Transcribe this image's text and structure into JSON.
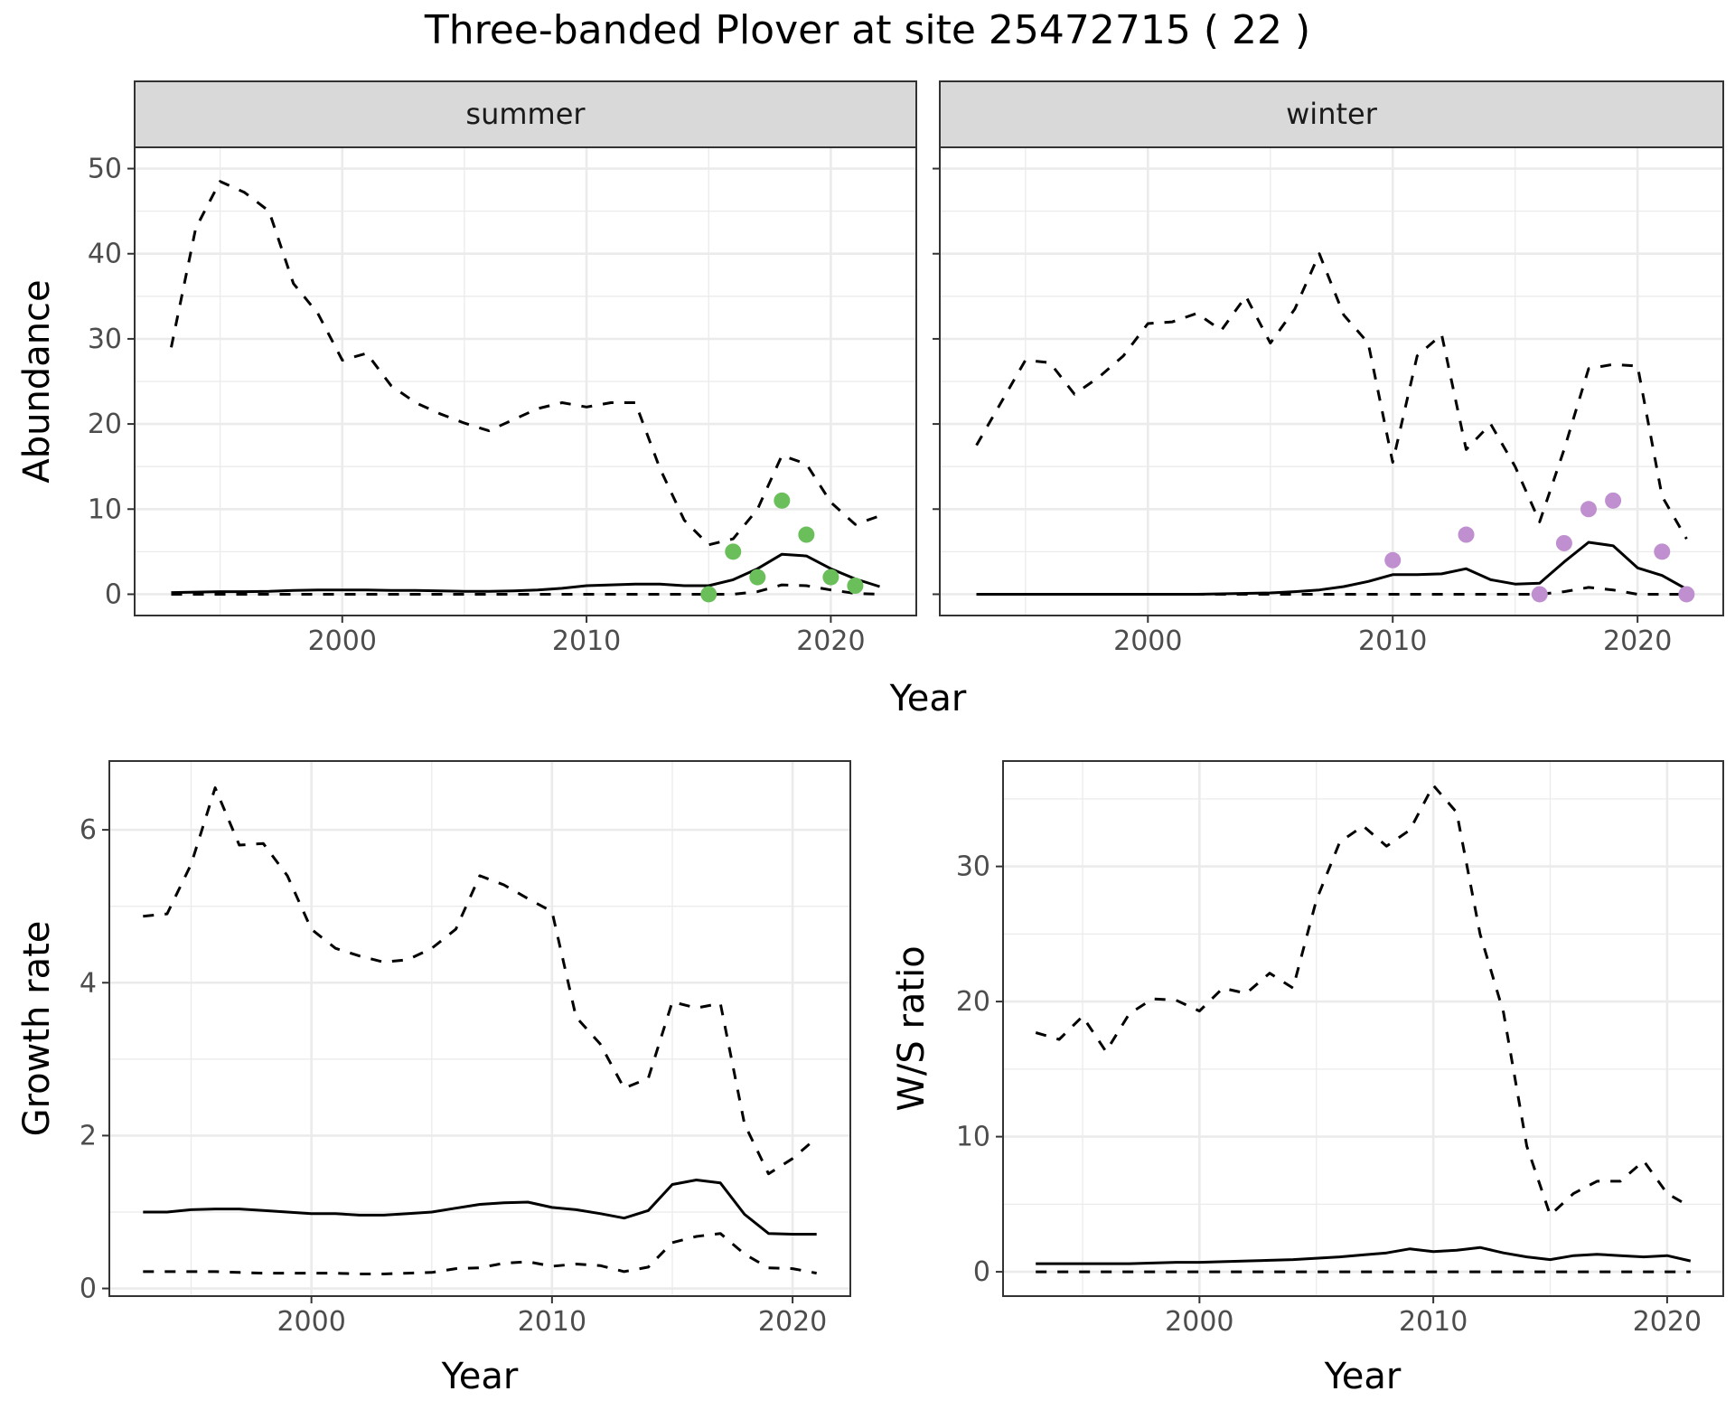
{
  "title": "Three-banded Plover at site 25472715 ( 22 )",
  "colors": {
    "summer_points": "#6abf5a",
    "winter_points": "#bf8fcf",
    "lines": "#000000",
    "strip_fill": "#d9d9d9"
  },
  "chart_data": [
    {
      "type": "line",
      "panel": "summer",
      "strip_label": "summer",
      "xlabel": "Year",
      "ylabel": "Abundance",
      "xlim": [
        1991.5,
        2023.5
      ],
      "ylim": [
        -2.5,
        52.5
      ],
      "x_ticks": [
        2000,
        2010,
        2020
      ],
      "y_ticks": [
        0,
        10,
        20,
        30,
        40,
        50
      ],
      "grid": true,
      "x": [
        1993,
        1994,
        1995,
        1996,
        1997,
        1998,
        1999,
        2000,
        2001,
        2002,
        2003,
        2004,
        2005,
        2006,
        2007,
        2008,
        2009,
        2010,
        2011,
        2012,
        2013,
        2014,
        2015,
        2016,
        2017,
        2018,
        2019,
        2020,
        2021,
        2022
      ],
      "series": [
        {
          "role": "mean",
          "style": "solid",
          "values": [
            0.2,
            0.25,
            0.3,
            0.3,
            0.35,
            0.45,
            0.5,
            0.5,
            0.5,
            0.45,
            0.45,
            0.4,
            0.35,
            0.35,
            0.4,
            0.5,
            0.7,
            1.0,
            1.1,
            1.2,
            1.2,
            1.0,
            1.0,
            1.7,
            3.0,
            4.7,
            4.5,
            3.0,
            1.8,
            0.9
          ]
        },
        {
          "role": "upper",
          "style": "dashed",
          "values": [
            29,
            43,
            48.5,
            47.2,
            45,
            36.5,
            33,
            27.5,
            28.3,
            24.5,
            22.5,
            21.2,
            20.1,
            19.2,
            20.5,
            21.8,
            22.5,
            22,
            22.5,
            22.5,
            14.8,
            8.7,
            5.8,
            6.5,
            10,
            16.3,
            15.3,
            10.8,
            8.2,
            9.2
          ]
        },
        {
          "role": "lower",
          "style": "dashed",
          "values": [
            0,
            0,
            0,
            0,
            0,
            0,
            0,
            0,
            0,
            0,
            0,
            0,
            0,
            0,
            0,
            0,
            0,
            0,
            0,
            0,
            0,
            0,
            0,
            0,
            0.3,
            1.1,
            1.0,
            0.5,
            0.1,
            0
          ]
        }
      ],
      "points": {
        "color": "#6abf5a",
        "x": [
          2015,
          2016,
          2017,
          2018,
          2019,
          2020,
          2021
        ],
        "y": [
          0,
          5,
          2,
          11,
          7,
          2,
          1
        ]
      }
    },
    {
      "type": "line",
      "panel": "winter",
      "strip_label": "winter",
      "xlabel": "Year",
      "ylabel": "Abundance",
      "xlim": [
        1991.5,
        2023.5
      ],
      "ylim": [
        -2.5,
        52.5
      ],
      "x_ticks": [
        2000,
        2010,
        2020
      ],
      "y_ticks": [
        0,
        10,
        20,
        30,
        40,
        50
      ],
      "grid": true,
      "x": [
        1993,
        1994,
        1995,
        1996,
        1997,
        1998,
        1999,
        2000,
        2001,
        2002,
        2003,
        2004,
        2005,
        2006,
        2007,
        2008,
        2009,
        2010,
        2011,
        2012,
        2013,
        2014,
        2015,
        2016,
        2017,
        2018,
        2019,
        2020,
        2021,
        2022
      ],
      "series": [
        {
          "role": "mean",
          "style": "solid",
          "values": [
            0,
            0,
            0,
            0,
            0,
            0,
            0,
            0,
            0,
            0,
            0.05,
            0.1,
            0.15,
            0.3,
            0.5,
            0.9,
            1.5,
            2.3,
            2.3,
            2.4,
            3.0,
            1.7,
            1.2,
            1.3,
            3.8,
            6.1,
            5.7,
            3.1,
            2.2,
            0.6
          ]
        },
        {
          "role": "upper",
          "style": "dashed",
          "values": [
            17.5,
            22.5,
            27.5,
            27.2,
            23.5,
            25.5,
            28,
            31.8,
            32,
            33,
            31,
            35,
            29.5,
            33.5,
            40,
            32.8,
            29.5,
            15.5,
            28,
            30.5,
            17,
            20,
            15,
            8.5,
            17,
            26.5,
            27,
            26.8,
            11.5,
            6.5
          ]
        },
        {
          "role": "lower",
          "style": "dashed",
          "values": [
            0,
            0,
            0,
            0,
            0,
            0,
            0,
            0,
            0,
            0,
            0,
            0,
            0,
            0,
            0,
            0,
            0,
            0,
            0,
            0,
            0,
            0,
            0,
            0,
            0.3,
            0.8,
            0.5,
            0,
            0,
            0
          ]
        }
      ],
      "points": {
        "color": "#bf8fcf",
        "x": [
          2010,
          2013,
          2016,
          2017,
          2018,
          2019,
          2021,
          2022
        ],
        "y": [
          4,
          7,
          0,
          6,
          10,
          11,
          5,
          0
        ]
      }
    },
    {
      "type": "line",
      "panel": "growth",
      "xlabel": "Year",
      "ylabel": "Growth rate",
      "xlim": [
        1991.6,
        2022.4
      ],
      "ylim": [
        -0.1,
        6.9
      ],
      "x_ticks": [
        2000,
        2010,
        2020
      ],
      "y_ticks": [
        0,
        2,
        4,
        6
      ],
      "grid": true,
      "x": [
        1993,
        1994,
        1995,
        1996,
        1997,
        1998,
        1999,
        2000,
        2001,
        2002,
        2003,
        2004,
        2005,
        2006,
        2007,
        2008,
        2009,
        2010,
        2011,
        2012,
        2013,
        2014,
        2015,
        2016,
        2017,
        2018,
        2019,
        2020,
        2021
      ],
      "series": [
        {
          "role": "mean",
          "style": "solid",
          "values": [
            1.0,
            1.0,
            1.03,
            1.04,
            1.04,
            1.02,
            1.0,
            0.98,
            0.98,
            0.96,
            0.96,
            0.98,
            1.0,
            1.05,
            1.1,
            1.12,
            1.13,
            1.06,
            1.03,
            0.98,
            0.92,
            1.02,
            1.36,
            1.42,
            1.38,
            0.97,
            0.72,
            0.71,
            0.71
          ]
        },
        {
          "role": "upper",
          "style": "dashed",
          "values": [
            4.87,
            4.9,
            5.55,
            6.55,
            5.8,
            5.82,
            5.4,
            4.7,
            4.45,
            4.35,
            4.27,
            4.3,
            4.45,
            4.7,
            5.4,
            5.28,
            5.1,
            4.93,
            3.55,
            3.2,
            2.62,
            2.75,
            3.75,
            3.67,
            3.73,
            2.15,
            1.5,
            1.7,
            1.97
          ]
        },
        {
          "role": "lower",
          "style": "dashed",
          "values": [
            0.22,
            0.22,
            0.22,
            0.22,
            0.21,
            0.2,
            0.2,
            0.2,
            0.2,
            0.19,
            0.19,
            0.2,
            0.21,
            0.26,
            0.27,
            0.33,
            0.35,
            0.29,
            0.32,
            0.3,
            0.22,
            0.28,
            0.6,
            0.68,
            0.72,
            0.45,
            0.27,
            0.26,
            0.2
          ]
        }
      ]
    },
    {
      "type": "line",
      "panel": "ws_ratio",
      "xlabel": "Year",
      "ylabel": "W/S ratio",
      "xlim": [
        1991.6,
        2022.4
      ],
      "ylim": [
        -1.8,
        37.8
      ],
      "x_ticks": [
        2000,
        2010,
        2020
      ],
      "y_ticks": [
        0,
        10,
        20,
        30
      ],
      "grid": true,
      "x": [
        1993,
        1994,
        1995,
        1996,
        1997,
        1998,
        1999,
        2000,
        2001,
        2002,
        2003,
        2004,
        2005,
        2006,
        2007,
        2008,
        2009,
        2010,
        2011,
        2012,
        2013,
        2014,
        2015,
        2016,
        2017,
        2018,
        2019,
        2020,
        2021
      ],
      "series": [
        {
          "role": "mean",
          "style": "solid",
          "values": [
            0.6,
            0.6,
            0.6,
            0.6,
            0.6,
            0.65,
            0.7,
            0.7,
            0.75,
            0.8,
            0.85,
            0.9,
            1.0,
            1.1,
            1.25,
            1.4,
            1.7,
            1.5,
            1.6,
            1.8,
            1.4,
            1.1,
            0.9,
            1.2,
            1.3,
            1.2,
            1.1,
            1.2,
            0.8
          ]
        },
        {
          "role": "upper",
          "style": "dashed",
          "values": [
            17.7,
            17.2,
            18.9,
            16.3,
            19.1,
            20.2,
            20.1,
            19.3,
            21,
            20.6,
            22.1,
            21,
            27.5,
            31.8,
            33,
            31.5,
            32.7,
            36,
            34,
            25,
            19.2,
            9.3,
            4.2,
            5.8,
            6.7,
            6.7,
            8.2,
            5.8,
            4.8
          ]
        },
        {
          "role": "lower",
          "style": "dashed",
          "values": [
            0,
            0,
            0,
            0,
            0,
            0,
            0,
            0,
            0,
            0,
            0,
            0,
            0,
            0,
            0,
            0,
            0,
            0,
            0,
            0,
            0,
            0,
            0,
            0,
            0,
            0,
            0,
            0,
            0
          ]
        }
      ]
    }
  ]
}
